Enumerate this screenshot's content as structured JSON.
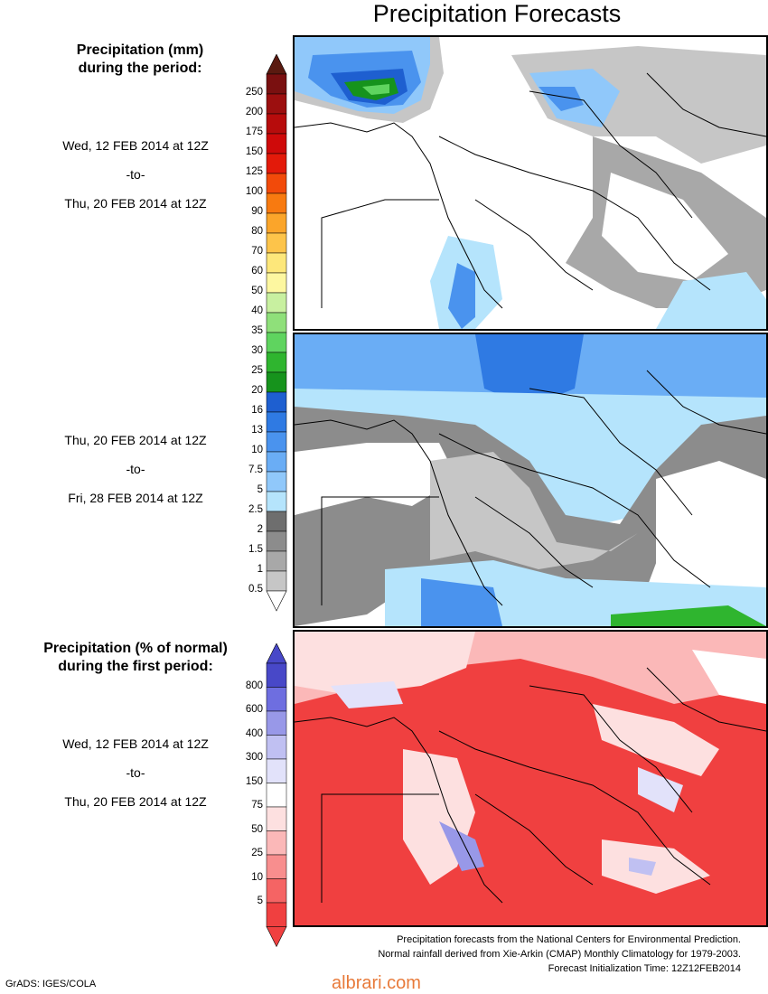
{
  "title": "Precipitation Forecasts",
  "panel1": {
    "heading_line1": "Precipitation (mm)",
    "heading_line2": "during the period:",
    "period_start": "Wed, 12 FEB 2014 at 12Z",
    "period_to": "-to-",
    "period_end": "Thu, 20 FEB 2014 at 12Z"
  },
  "panel2": {
    "period_start": "Thu, 20 FEB 2014 at 12Z",
    "period_to": "-to-",
    "period_end": "Fri, 28 FEB 2014 at 12Z"
  },
  "panel3": {
    "heading_line1": "Precipitation (% of normal)",
    "heading_line2": "during the first period:",
    "period_start": "Wed, 12 FEB 2014 at 12Z",
    "period_to": "-to-",
    "period_end": "Thu, 20 FEB 2014 at 12Z"
  },
  "mm_scale": {
    "labels": [
      "250",
      "200",
      "175",
      "150",
      "125",
      "100",
      "90",
      "80",
      "70",
      "60",
      "50",
      "40",
      "35",
      "30",
      "25",
      "20",
      "16",
      "13",
      "10",
      "7.5",
      "5",
      "2.5",
      "2",
      "1.5",
      "1",
      "0.5"
    ],
    "colors": [
      "#7a1010",
      "#9c0f0f",
      "#b70c0c",
      "#cf0a0a",
      "#e31a0a",
      "#f24a0a",
      "#f87a10",
      "#fba52a",
      "#fdc44a",
      "#fde77a",
      "#fdf7a0",
      "#c8f0a0",
      "#8fe07a",
      "#5fd45f",
      "#2fb52f",
      "#16931c",
      "#1e5fd0",
      "#2f7ae3",
      "#4a93ee",
      "#6aadf5",
      "#90c8fa",
      "#b5e4fc",
      "#6e6e6e",
      "#8c8c8c",
      "#a8a8a8",
      "#c6c6c6"
    ]
  },
  "pct_scale": {
    "labels": [
      "800",
      "600",
      "400",
      "300",
      "150",
      "75",
      "50",
      "25",
      "10",
      "5"
    ],
    "colors": [
      "#4848c8",
      "#6e6ee0",
      "#9898e8",
      "#c0c0f2",
      "#e2e2fa",
      "#ffffff",
      "#fde0e0",
      "#fbb8b8",
      "#f88e8e",
      "#f56464",
      "#f04040"
    ]
  },
  "footer": {
    "line1": "Precipitation forecasts from the National Centers for Environmental Prediction.",
    "line2": "Normal rainfall derived from Xie-Arkin (CMAP) Monthly Climatology for 1979-2003.",
    "line3": "Forecast Initialization Time: 12Z12FEB2014"
  },
  "credit": "GrADS: IGES/COLA",
  "watermark": "albrari.com"
}
